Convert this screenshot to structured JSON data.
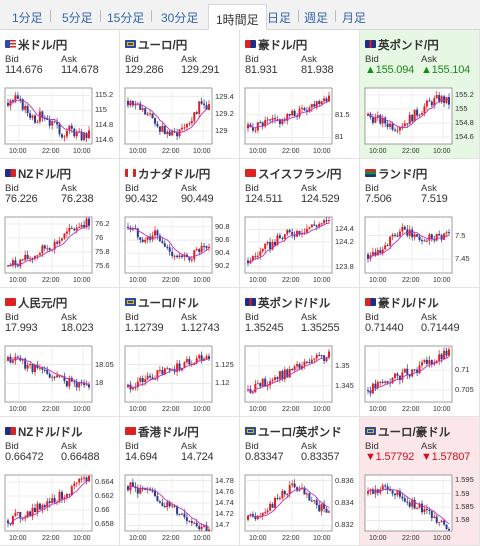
{
  "tabs": [
    {
      "label": "1分足",
      "active": false
    },
    {
      "label": "5分足",
      "active": false
    },
    {
      "label": "15分足",
      "active": false
    },
    {
      "label": "30分足",
      "active": false
    },
    {
      "label": "1時間足",
      "active": true
    },
    {
      "label": "日足",
      "active": false
    },
    {
      "label": "週足",
      "active": false
    },
    {
      "label": "月足",
      "active": false
    }
  ],
  "bid_label": "Bid",
  "ask_label": "Ask",
  "colors": {
    "up": "#1a8a1a",
    "down": "#d0101e",
    "candle_up": "#e02020",
    "candle_down": "#2a3b8f",
    "ma": "#c030c0"
  },
  "pairs": [
    {
      "name": "米ドル/円",
      "flag": "us",
      "bid": "114.676",
      "ask": "114.678",
      "highlight": "none",
      "chart_data": {
        "type": "candlestick",
        "x_ticks": [
          "10:00",
          "22:00",
          "10:00"
        ],
        "y_ticks": [
          "115.2",
          "115",
          "114.8",
          "114.6"
        ],
        "ylim": [
          114.55,
          115.3
        ],
        "trend": [
          115.1,
          115.15,
          115.0,
          114.9,
          114.95,
          114.8,
          114.7,
          114.75,
          114.65,
          114.68
        ]
      }
    },
    {
      "name": "ユーロ/円",
      "flag": "eu",
      "bid": "129.286",
      "ask": "129.291",
      "highlight": "none",
      "chart_data": {
        "type": "candlestick",
        "x_ticks": [
          "10:00",
          "22:00",
          "10:00"
        ],
        "y_ticks": [
          "129.4",
          "129.2",
          "129"
        ],
        "ylim": [
          128.85,
          129.5
        ],
        "trend": [
          129.35,
          129.3,
          129.2,
          129.1,
          129.0,
          128.95,
          129.05,
          129.15,
          129.3,
          129.29
        ]
      }
    },
    {
      "name": "豪ドル/円",
      "flag": "au",
      "bid": "81.931",
      "ask": "81.938",
      "highlight": "none",
      "chart_data": {
        "type": "candlestick",
        "x_ticks": [
          "10:00",
          "22:00",
          "10:00"
        ],
        "y_ticks": [
          "81.5",
          "81"
        ],
        "ylim": [
          80.85,
          82.1
        ],
        "trend": [
          81.2,
          81.25,
          81.3,
          81.35,
          81.4,
          81.5,
          81.6,
          81.7,
          81.85,
          81.93
        ]
      }
    },
    {
      "name": "英ポンド/円",
      "flag": "gb",
      "bid": "▲155.094",
      "ask": "▲155.104",
      "highlight": "up",
      "chart_data": {
        "type": "candlestick",
        "x_ticks": [
          "10:00",
          "22:00",
          "10:00"
        ],
        "y_ticks": [
          "155.2",
          "155",
          "154.8",
          "154.6"
        ],
        "ylim": [
          154.5,
          155.3
        ],
        "trend": [
          154.9,
          154.85,
          154.8,
          154.75,
          154.8,
          154.9,
          155.0,
          155.1,
          155.15,
          155.09
        ]
      }
    },
    {
      "name": "NZドル/円",
      "flag": "nz",
      "bid": "76.226",
      "ask": "76.238",
      "highlight": "none",
      "chart_data": {
        "type": "candlestick",
        "x_ticks": [
          "10:00",
          "22:00",
          "10:00"
        ],
        "y_ticks": [
          "76.2",
          "76",
          "75.8",
          "75.6"
        ],
        "ylim": [
          75.5,
          76.3
        ],
        "trend": [
          75.6,
          75.65,
          75.7,
          75.75,
          75.85,
          75.9,
          76.0,
          76.1,
          76.2,
          76.23
        ]
      }
    },
    {
      "name": "カナダドル/円",
      "flag": "ca",
      "bid": "90.432",
      "ask": "90.449",
      "highlight": "none",
      "chart_data": {
        "type": "candlestick",
        "x_ticks": [
          "10:00",
          "22:00",
          "10:00"
        ],
        "y_ticks": [
          "90.8",
          "90.6",
          "90.4",
          "90.2"
        ],
        "ylim": [
          90.1,
          90.95
        ],
        "trend": [
          90.8,
          90.7,
          90.6,
          90.7,
          90.5,
          90.4,
          90.3,
          90.35,
          90.45,
          90.43
        ]
      }
    },
    {
      "name": "スイスフラン/円",
      "flag": "ch",
      "bid": "124.511",
      "ask": "124.529",
      "highlight": "none",
      "chart_data": {
        "type": "candlestick",
        "x_ticks": [
          "10:00",
          "22:00",
          "10:00"
        ],
        "y_ticks": [
          "124.4",
          "124.2",
          "123.8"
        ],
        "ylim": [
          123.7,
          124.6
        ],
        "trend": [
          123.9,
          124.0,
          124.1,
          124.2,
          124.3,
          124.35,
          124.4,
          124.45,
          124.5,
          124.51
        ]
      }
    },
    {
      "name": "ランド/円",
      "flag": "za",
      "bid": "7.506",
      "ask": "7.519",
      "highlight": "none",
      "chart_data": {
        "type": "candlestick",
        "x_ticks": [
          "10:00",
          "22:00",
          "10:00"
        ],
        "y_ticks": [
          "7.5",
          "7.45"
        ],
        "ylim": [
          7.42,
          7.54
        ],
        "trend": [
          7.46,
          7.47,
          7.48,
          7.5,
          7.51,
          7.5,
          7.49,
          7.5,
          7.5,
          7.506
        ]
      }
    },
    {
      "name": "人民元/円",
      "flag": "cn",
      "bid": "17.993",
      "ask": "18.023",
      "highlight": "none",
      "chart_data": {
        "type": "candlestick",
        "x_ticks": [
          "10:00",
          "22:00",
          "10:00"
        ],
        "y_ticks": [
          "18.05",
          "18"
        ],
        "ylim": [
          17.95,
          18.1
        ],
        "trend": [
          18.06,
          18.07,
          18.05,
          18.04,
          18.03,
          18.02,
          18.01,
          18.0,
          18.0,
          17.993
        ]
      }
    },
    {
      "name": "ユーロ/ドル",
      "flag": "eu",
      "bid": "1.12739",
      "ask": "1.12743",
      "highlight": "none",
      "chart_data": {
        "type": "candlestick",
        "x_ticks": [
          "10:00",
          "22:00",
          "10:00"
        ],
        "y_ticks": [
          "1.125",
          "1.12"
        ],
        "ylim": [
          1.115,
          1.13
        ],
        "trend": [
          1.119,
          1.12,
          1.121,
          1.122,
          1.123,
          1.124,
          1.125,
          1.126,
          1.127,
          1.1274
        ]
      }
    },
    {
      "name": "英ポンド/ドル",
      "flag": "gb",
      "bid": "1.35245",
      "ask": "1.35255",
      "highlight": "none",
      "chart_data": {
        "type": "candlestick",
        "x_ticks": [
          "10:00",
          "22:00",
          "10:00"
        ],
        "y_ticks": [
          "1.35",
          "1.345"
        ],
        "ylim": [
          1.341,
          1.355
        ],
        "trend": [
          1.344,
          1.345,
          1.346,
          1.347,
          1.348,
          1.349,
          1.35,
          1.351,
          1.352,
          1.3524
        ]
      }
    },
    {
      "name": "豪ドル/ドル",
      "flag": "au",
      "bid": "0.71440",
      "ask": "0.71449",
      "highlight": "none",
      "chart_data": {
        "type": "candlestick",
        "x_ticks": [
          "10:00",
          "22:00",
          "10:00"
        ],
        "y_ticks": [
          "0.71",
          "0.705"
        ],
        "ylim": [
          0.702,
          0.716
        ],
        "trend": [
          0.705,
          0.706,
          0.707,
          0.708,
          0.709,
          0.71,
          0.711,
          0.712,
          0.713,
          0.7144
        ]
      }
    },
    {
      "name": "NZドル/ドル",
      "flag": "nz",
      "bid": "0.66472",
      "ask": "0.66488",
      "highlight": "none",
      "chart_data": {
        "type": "candlestick",
        "x_ticks": [
          "10:00",
          "22:00",
          "10:00"
        ],
        "y_ticks": [
          "0.664",
          "0.662",
          "0.66",
          "0.658"
        ],
        "ylim": [
          0.657,
          0.665
        ],
        "trend": [
          0.6585,
          0.659,
          0.6595,
          0.66,
          0.661,
          0.6615,
          0.662,
          0.663,
          0.6638,
          0.6647
        ]
      }
    },
    {
      "name": "香港ドル/円",
      "flag": "hk",
      "bid": "14.694",
      "ask": "14.724",
      "highlight": "none",
      "chart_data": {
        "type": "candlestick",
        "x_ticks": [
          "10:00",
          "22:00",
          "10:00"
        ],
        "y_ticks": [
          "14.78",
          "14.76",
          "14.74",
          "14.72",
          "14.7"
        ],
        "ylim": [
          14.69,
          14.79
        ],
        "trend": [
          14.77,
          14.765,
          14.76,
          14.75,
          14.74,
          14.73,
          14.72,
          14.71,
          14.7,
          14.694
        ]
      }
    },
    {
      "name": "ユーロ/英ポンド",
      "flag": "eu",
      "bid": "0.83347",
      "ask": "0.83357",
      "highlight": "none",
      "chart_data": {
        "type": "candlestick",
        "x_ticks": [
          "10:00",
          "22:00",
          "10:00"
        ],
        "y_ticks": [
          "0.836",
          "0.834",
          "0.832"
        ],
        "ylim": [
          0.8315,
          0.8365
        ],
        "trend": [
          0.8325,
          0.833,
          0.8335,
          0.834,
          0.835,
          0.8355,
          0.835,
          0.834,
          0.8335,
          0.8335
        ]
      }
    },
    {
      "name": "ユーロ/豪ドル",
      "flag": "eu",
      "bid": "▼1.57792",
      "ask": "▼1.57807",
      "highlight": "down",
      "chart_data": {
        "type": "candlestick",
        "x_ticks": [
          "10:00",
          "22:00",
          "10:00"
        ],
        "y_ticks": [
          "1.595",
          "1.59",
          "1.585",
          "1.58"
        ],
        "ylim": [
          1.576,
          1.597
        ],
        "trend": [
          1.59,
          1.591,
          1.592,
          1.59,
          1.588,
          1.586,
          1.584,
          1.582,
          1.58,
          1.578
        ]
      }
    }
  ]
}
